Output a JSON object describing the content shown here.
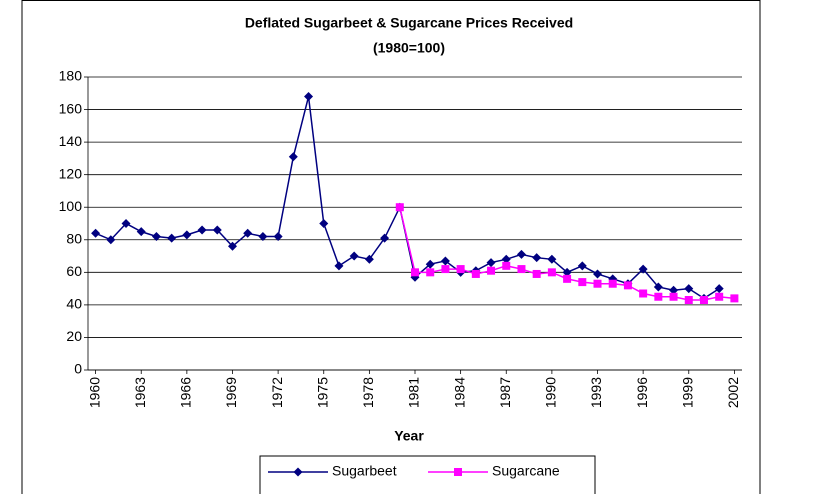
{
  "chart_data": {
    "type": "line",
    "title": "Deflated Sugarbeet & Sugarcane Prices Received",
    "subtitle": "(1980=100)",
    "x_label": "Year",
    "x": [
      1960,
      1961,
      1962,
      1963,
      1964,
      1965,
      1966,
      1967,
      1968,
      1969,
      1970,
      1971,
      1972,
      1973,
      1974,
      1975,
      1976,
      1977,
      1978,
      1979,
      1980,
      1981,
      1982,
      1983,
      1984,
      1985,
      1986,
      1987,
      1988,
      1989,
      1990,
      1991,
      1992,
      1993,
      1994,
      1995,
      1996,
      1997,
      1998,
      1999,
      2000,
      2001,
      2002
    ],
    "xlim": [
      1959.5,
      2002.5
    ],
    "xticks": [
      1960,
      1963,
      1966,
      1969,
      1972,
      1975,
      1978,
      1981,
      1984,
      1987,
      1990,
      1993,
      1996,
      1999,
      2002
    ],
    "ylim": [
      0,
      180
    ],
    "yticks": [
      0,
      20,
      40,
      60,
      80,
      100,
      120,
      140,
      160,
      180
    ],
    "grid": true,
    "legend": "bottom",
    "series": [
      {
        "name": "Sugarbeet",
        "color": "#000080",
        "marker": "diamond",
        "values": [
          84,
          80,
          90,
          85,
          82,
          81,
          83,
          86,
          86,
          76,
          84,
          82,
          82,
          131,
          168,
          90,
          64,
          70,
          68,
          81,
          100,
          57,
          65,
          67,
          60,
          61,
          66,
          68,
          71,
          69,
          68,
          60,
          64,
          59,
          56,
          53,
          62,
          51,
          49,
          50,
          44,
          50,
          null
        ]
      },
      {
        "name": "Sugarcane",
        "color": "#ff00ff",
        "marker": "square",
        "values": [
          null,
          null,
          null,
          null,
          null,
          null,
          null,
          null,
          null,
          null,
          null,
          null,
          null,
          null,
          null,
          null,
          null,
          null,
          null,
          null,
          100,
          60,
          60,
          62,
          62,
          59,
          61,
          64,
          62,
          59,
          60,
          56,
          54,
          53,
          53,
          52,
          47,
          45,
          45,
          43,
          43,
          45,
          44
        ]
      }
    ]
  }
}
